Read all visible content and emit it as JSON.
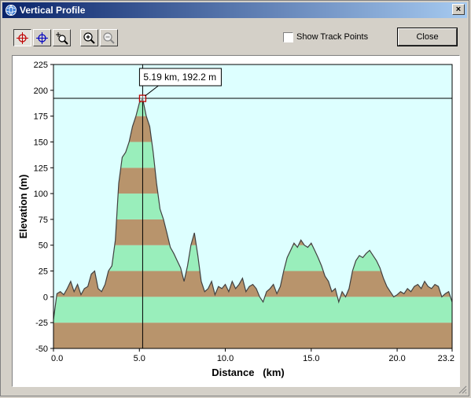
{
  "window": {
    "title": "Vertical Profile",
    "close_glyph": "×",
    "title_icon": "globe-icon"
  },
  "toolbar": {
    "tools": [
      {
        "name": "red-crosshair-icon",
        "pressed": true
      },
      {
        "name": "blue-crosshair-icon",
        "pressed": false
      },
      {
        "name": "zoom-region-icon",
        "pressed": false
      },
      {
        "name": "zoom-in-icon",
        "pressed": false
      },
      {
        "name": "zoom-out-icon",
        "pressed": false
      }
    ],
    "show_track_points": {
      "label": "Show Track Points",
      "checked": false
    },
    "close_label": "Close"
  },
  "colors": {
    "plot_bg": "#ddffff",
    "band_brown": "#b8946c",
    "band_green": "#99eebb",
    "line": "#404040"
  },
  "chart_data": {
    "type": "area",
    "xlabel": "Distance   (km)",
    "ylabel": "Elevation (m)",
    "xlim": [
      0,
      23.2
    ],
    "ylim": [
      -50,
      225
    ],
    "xticks": [
      "0.0",
      "5.0",
      "10.0",
      "15.0",
      "20.0",
      "23.2"
    ],
    "yticks": [
      "225",
      "200",
      "175",
      "150",
      "125",
      "100",
      "75",
      "50",
      "25",
      "0",
      "-25",
      "-50"
    ],
    "band_height_m": 25,
    "cursor": {
      "x": 5.19,
      "y": 192.2,
      "label": "5.19 km, 192.2 m"
    },
    "x": [
      0.0,
      0.2,
      0.4,
      0.6,
      0.8,
      1.0,
      1.2,
      1.4,
      1.6,
      1.8,
      2.0,
      2.2,
      2.4,
      2.6,
      2.8,
      3.0,
      3.2,
      3.4,
      3.6,
      3.8,
      4.0,
      4.2,
      4.4,
      4.6,
      4.8,
      5.0,
      5.19,
      5.4,
      5.6,
      5.8,
      6.0,
      6.2,
      6.4,
      6.6,
      6.8,
      7.0,
      7.2,
      7.4,
      7.6,
      7.8,
      8.0,
      8.2,
      8.4,
      8.6,
      8.8,
      9.0,
      9.2,
      9.4,
      9.6,
      9.8,
      10.0,
      10.2,
      10.4,
      10.6,
      10.8,
      11.0,
      11.2,
      11.4,
      11.6,
      11.8,
      12.0,
      12.2,
      12.4,
      12.6,
      12.8,
      13.0,
      13.2,
      13.4,
      13.6,
      13.8,
      14.0,
      14.2,
      14.4,
      14.6,
      14.8,
      15.0,
      15.2,
      15.4,
      15.6,
      15.8,
      16.0,
      16.2,
      16.4,
      16.6,
      16.8,
      17.0,
      17.2,
      17.4,
      17.6,
      17.8,
      18.0,
      18.2,
      18.4,
      18.6,
      18.8,
      19.0,
      19.2,
      19.4,
      19.6,
      19.8,
      20.0,
      20.2,
      20.4,
      20.6,
      20.8,
      21.0,
      21.2,
      21.4,
      21.6,
      21.8,
      22.0,
      22.2,
      22.4,
      22.6,
      22.8,
      23.0,
      23.2
    ],
    "y": [
      -22,
      3,
      5,
      2,
      8,
      15,
      5,
      12,
      2,
      8,
      10,
      22,
      25,
      8,
      5,
      12,
      25,
      30,
      55,
      110,
      135,
      140,
      150,
      165,
      175,
      188,
      192,
      175,
      165,
      140,
      110,
      85,
      75,
      62,
      48,
      42,
      35,
      28,
      15,
      30,
      50,
      62,
      40,
      15,
      5,
      8,
      15,
      2,
      10,
      8,
      12,
      5,
      15,
      8,
      12,
      18,
      5,
      10,
      12,
      8,
      0,
      -5,
      5,
      8,
      12,
      3,
      10,
      25,
      38,
      45,
      52,
      48,
      55,
      50,
      48,
      52,
      45,
      38,
      30,
      20,
      15,
      5,
      8,
      -5,
      5,
      0,
      8,
      25,
      35,
      40,
      38,
      42,
      45,
      40,
      35,
      28,
      18,
      10,
      5,
      0,
      2,
      5,
      3,
      8,
      5,
      10,
      12,
      8,
      15,
      10,
      8,
      12,
      10,
      0,
      3,
      5,
      -5
    ]
  }
}
